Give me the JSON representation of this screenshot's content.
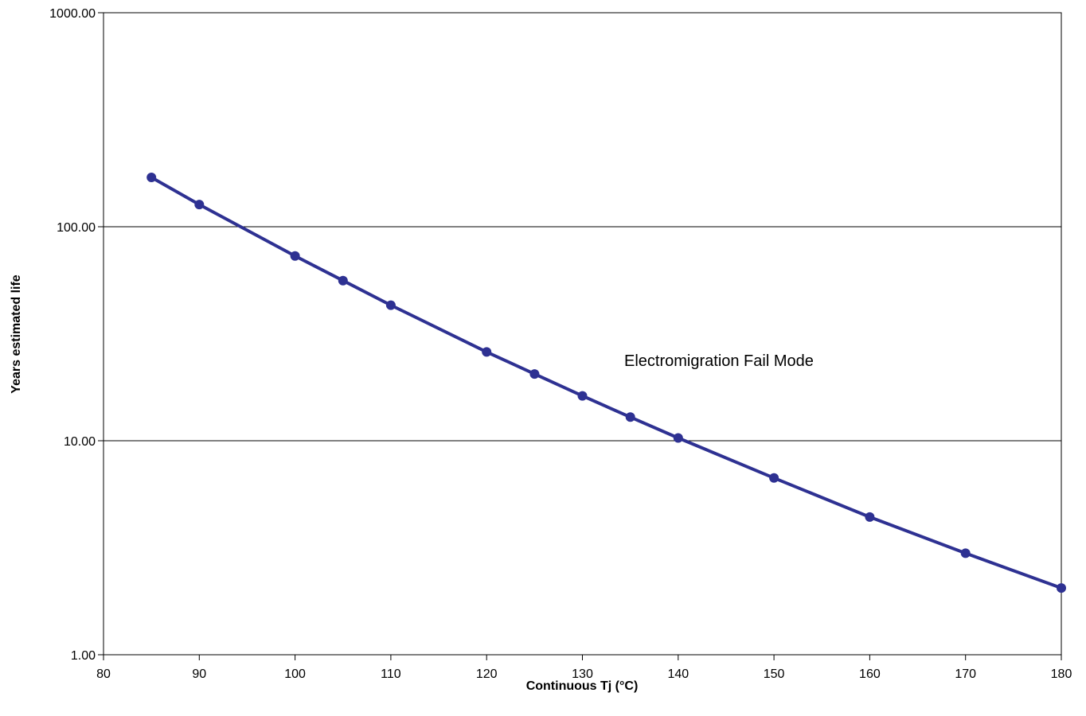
{
  "chart_data": {
    "type": "line",
    "title": "",
    "xlabel": "Continuous Tj (°C)",
    "ylabel": "Years estimated life",
    "xlim": [
      80,
      180
    ],
    "ylim": [
      1,
      1000
    ],
    "y_scale": "log",
    "x_ticks": [
      "80",
      "90",
      "100",
      "110",
      "120",
      "130",
      "140",
      "150",
      "160",
      "170",
      "180"
    ],
    "y_ticks": [
      "1.00",
      "10.00",
      "100.00",
      "1000.00"
    ],
    "grid": "horizontal major gridlines",
    "legend": "none",
    "annotation": "Electromigration Fail Mode",
    "series": [
      {
        "color": "#2e3192",
        "marker": "circle",
        "points": [
          {
            "x": 85,
            "y": 170
          },
          {
            "x": 90,
            "y": 127
          },
          {
            "x": 100,
            "y": 73
          },
          {
            "x": 105,
            "y": 56
          },
          {
            "x": 110,
            "y": 43
          },
          {
            "x": 120,
            "y": 26
          },
          {
            "x": 125,
            "y": 20.5
          },
          {
            "x": 130,
            "y": 16.2
          },
          {
            "x": 135,
            "y": 12.9
          },
          {
            "x": 140,
            "y": 10.3
          },
          {
            "x": 150,
            "y": 6.7
          },
          {
            "x": 160,
            "y": 4.4
          },
          {
            "x": 170,
            "y": 2.98
          },
          {
            "x": 180,
            "y": 2.05
          }
        ]
      }
    ]
  }
}
